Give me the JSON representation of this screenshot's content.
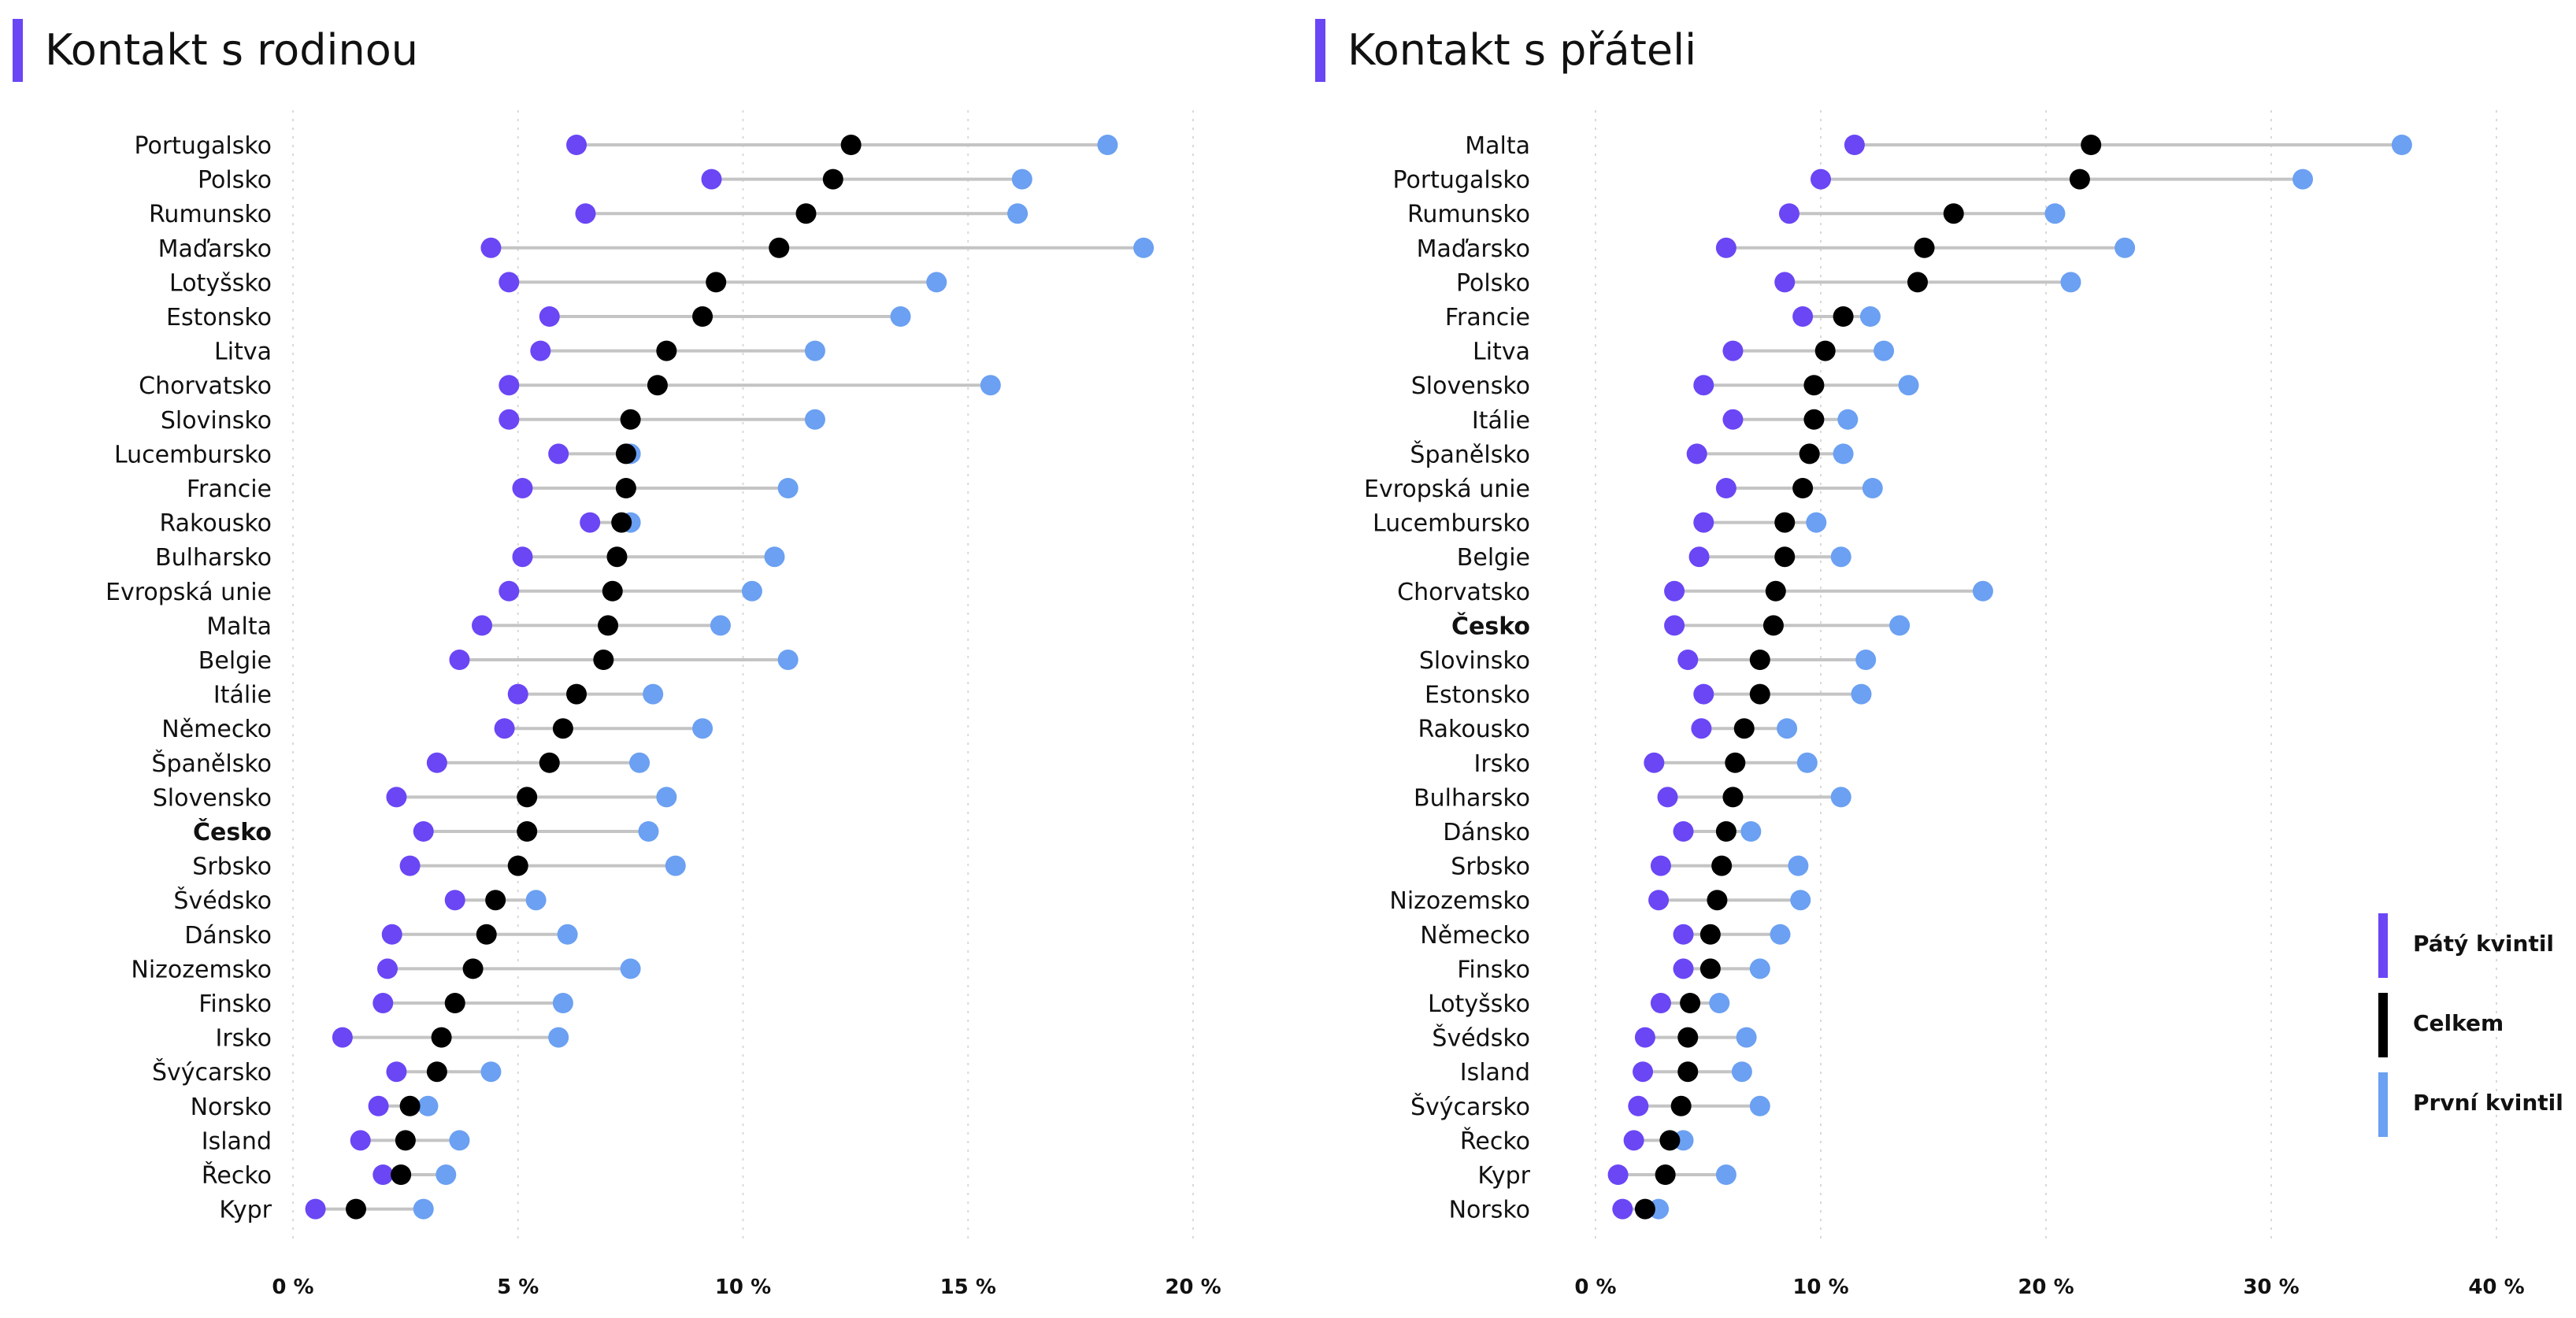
{
  "colors": {
    "accent": "#6a46f5",
    "fifth": "#6a46f5",
    "total": "#000000",
    "first": "#6ba0f2",
    "connector": "#c4c4c4",
    "grid": "#d9d9d9"
  },
  "legend": {
    "items": [
      {
        "label": "Pátý kvintil",
        "color": "#6a46f5"
      },
      {
        "label": "Celkem",
        "color": "#000000"
      },
      {
        "label": "První kvintil",
        "color": "#6ba0f2"
      }
    ]
  },
  "chart_data": [
    {
      "type": "dumbbell",
      "title": "Kontakt s rodinou",
      "xlim": [
        0,
        20
      ],
      "xticks": [
        0,
        5,
        10,
        15,
        20
      ],
      "xtick_labels": [
        "0 %",
        "5 %",
        "10 %",
        "15 %",
        "20 %"
      ],
      "grid": true,
      "highlight": "Česko",
      "series": [
        {
          "name": "Pátý kvintil",
          "color": "#6a46f5"
        },
        {
          "name": "Celkem",
          "color": "#000000"
        },
        {
          "name": "První kvintil",
          "color": "#6ba0f2"
        }
      ],
      "rows": [
        {
          "label": "Portugalsko",
          "values": [
            6.3,
            12.4,
            18.1
          ]
        },
        {
          "label": "Polsko",
          "values": [
            9.3,
            12.0,
            16.2
          ]
        },
        {
          "label": "Rumunsko",
          "values": [
            6.5,
            11.4,
            16.1
          ]
        },
        {
          "label": "Maďarsko",
          "values": [
            4.4,
            10.8,
            18.9
          ]
        },
        {
          "label": "Lotyšsko",
          "values": [
            4.8,
            9.4,
            14.3
          ]
        },
        {
          "label": "Estonsko",
          "values": [
            5.7,
            9.1,
            13.5
          ]
        },
        {
          "label": "Litva",
          "values": [
            5.5,
            8.3,
            11.6
          ]
        },
        {
          "label": "Chorvatsko",
          "values": [
            4.8,
            8.1,
            15.5
          ]
        },
        {
          "label": "Slovinsko",
          "values": [
            4.8,
            7.5,
            11.6
          ]
        },
        {
          "label": "Lucembursko",
          "values": [
            5.9,
            7.4,
            7.5
          ]
        },
        {
          "label": "Francie",
          "values": [
            5.1,
            7.4,
            11.0
          ]
        },
        {
          "label": "Rakousko",
          "values": [
            6.6,
            7.3,
            7.5
          ]
        },
        {
          "label": "Bulharsko",
          "values": [
            5.1,
            7.2,
            10.7
          ]
        },
        {
          "label": "Evropská unie",
          "values": [
            4.8,
            7.1,
            10.2
          ]
        },
        {
          "label": "Malta",
          "values": [
            4.2,
            7.0,
            9.5
          ]
        },
        {
          "label": "Belgie",
          "values": [
            3.7,
            6.9,
            11.0
          ]
        },
        {
          "label": "Itálie",
          "values": [
            5.0,
            6.3,
            8.0
          ]
        },
        {
          "label": "Německo",
          "values": [
            4.7,
            6.0,
            9.1
          ]
        },
        {
          "label": "Španělsko",
          "values": [
            3.2,
            5.7,
            7.7
          ]
        },
        {
          "label": "Slovensko",
          "values": [
            2.3,
            5.2,
            8.3
          ]
        },
        {
          "label": "Česko",
          "values": [
            2.9,
            5.2,
            7.9
          ]
        },
        {
          "label": "Srbsko",
          "values": [
            2.6,
            5.0,
            8.5
          ]
        },
        {
          "label": "Švédsko",
          "values": [
            3.6,
            4.5,
            5.4
          ]
        },
        {
          "label": "Dánsko",
          "values": [
            2.2,
            4.3,
            6.1
          ]
        },
        {
          "label": "Nizozemsko",
          "values": [
            2.1,
            4.0,
            7.5
          ]
        },
        {
          "label": "Finsko",
          "values": [
            2.0,
            3.6,
            6.0
          ]
        },
        {
          "label": "Irsko",
          "values": [
            1.1,
            3.3,
            5.9
          ]
        },
        {
          "label": "Švýcarsko",
          "values": [
            2.3,
            3.2,
            4.4
          ]
        },
        {
          "label": "Norsko",
          "values": [
            1.9,
            2.6,
            3.0
          ]
        },
        {
          "label": "Island",
          "values": [
            1.5,
            2.5,
            3.7
          ]
        },
        {
          "label": "Řecko",
          "values": [
            2.0,
            2.4,
            3.4
          ]
        },
        {
          "label": "Kypr",
          "values": [
            0.5,
            1.4,
            2.9
          ]
        }
      ]
    },
    {
      "type": "dumbbell",
      "title": "Kontakt s přáteli",
      "xlim": [
        0,
        40
      ],
      "xticks": [
        0,
        10,
        20,
        30,
        40
      ],
      "xtick_labels": [
        "0 %",
        "10 %",
        "20 %",
        "30 %",
        "40 %"
      ],
      "grid": true,
      "highlight": "Česko",
      "series": [
        {
          "name": "Pátý kvintil",
          "color": "#6a46f5"
        },
        {
          "name": "Celkem",
          "color": "#000000"
        },
        {
          "name": "První kvintil",
          "color": "#6ba0f2"
        }
      ],
      "rows": [
        {
          "label": "Malta",
          "values": [
            11.5,
            22.0,
            35.8
          ]
        },
        {
          "label": "Portugalsko",
          "values": [
            10.0,
            21.5,
            31.4
          ]
        },
        {
          "label": "Rumunsko",
          "values": [
            8.6,
            15.9,
            20.4
          ]
        },
        {
          "label": "Maďarsko",
          "values": [
            5.8,
            14.6,
            23.5
          ]
        },
        {
          "label": "Polsko",
          "values": [
            8.4,
            14.3,
            21.1
          ]
        },
        {
          "label": "Francie",
          "values": [
            9.2,
            11.0,
            12.2
          ]
        },
        {
          "label": "Litva",
          "values": [
            6.1,
            10.2,
            12.8
          ]
        },
        {
          "label": "Slovensko",
          "values": [
            4.8,
            9.7,
            13.9
          ]
        },
        {
          "label": "Itálie",
          "values": [
            6.1,
            9.7,
            11.2
          ]
        },
        {
          "label": "Španělsko",
          "values": [
            4.5,
            9.5,
            11.0
          ]
        },
        {
          "label": "Evropská unie",
          "values": [
            5.8,
            9.2,
            12.3
          ]
        },
        {
          "label": "Lucembursko",
          "values": [
            4.8,
            8.4,
            9.8
          ]
        },
        {
          "label": "Belgie",
          "values": [
            4.6,
            8.4,
            10.9
          ]
        },
        {
          "label": "Chorvatsko",
          "values": [
            3.5,
            8.0,
            17.2
          ]
        },
        {
          "label": "Česko",
          "values": [
            3.5,
            7.9,
            13.5
          ]
        },
        {
          "label": "Slovinsko",
          "values": [
            4.1,
            7.3,
            12.0
          ]
        },
        {
          "label": "Estonsko",
          "values": [
            4.8,
            7.3,
            11.8
          ]
        },
        {
          "label": "Rakousko",
          "values": [
            4.7,
            6.6,
            8.5
          ]
        },
        {
          "label": "Irsko",
          "values": [
            2.6,
            6.2,
            9.4
          ]
        },
        {
          "label": "Bulharsko",
          "values": [
            3.2,
            6.1,
            10.9
          ]
        },
        {
          "label": "Dánsko",
          "values": [
            3.9,
            5.8,
            6.9
          ]
        },
        {
          "label": "Srbsko",
          "values": [
            2.9,
            5.6,
            9.0
          ]
        },
        {
          "label": "Nizozemsko",
          "values": [
            2.8,
            5.4,
            9.1
          ]
        },
        {
          "label": "Německo",
          "values": [
            3.9,
            5.1,
            8.2
          ]
        },
        {
          "label": "Finsko",
          "values": [
            3.9,
            5.1,
            7.3
          ]
        },
        {
          "label": "Lotyšsko",
          "values": [
            2.9,
            4.2,
            5.5
          ]
        },
        {
          "label": "Švédsko",
          "values": [
            2.2,
            4.1,
            6.7
          ]
        },
        {
          "label": "Island",
          "values": [
            2.1,
            4.1,
            6.5
          ]
        },
        {
          "label": "Švýcarsko",
          "values": [
            1.9,
            3.8,
            7.3
          ]
        },
        {
          "label": "Řecko",
          "values": [
            1.7,
            3.3,
            3.9
          ]
        },
        {
          "label": "Kypr",
          "values": [
            1.0,
            3.1,
            5.8
          ]
        },
        {
          "label": "Norsko",
          "values": [
            1.2,
            2.2,
            2.8
          ]
        }
      ]
    }
  ]
}
